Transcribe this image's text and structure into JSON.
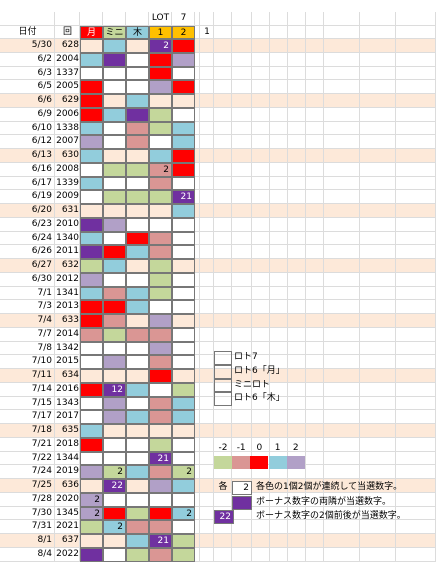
{
  "header": {
    "date": "日付",
    "round": "回",
    "top": [
      "LOT",
      "7"
    ],
    "columns": [
      {
        "label": "月",
        "color": "#ff0000"
      },
      {
        "label": "ミニ",
        "color": "#c4d79b"
      },
      {
        "label": "木",
        "color": "#92cddc"
      },
      {
        "label": 1,
        "color": "#ffc000"
      },
      {
        "label": 2,
        "color": "#ffc000"
      },
      {
        "label": 1,
        "color": null
      }
    ]
  },
  "palette": {
    "r": "#ff0000",
    "g": "#c4d79b",
    "p": "#da9694",
    "b": "#92cddc",
    "v": "#b1a0c7",
    "P": "#7030a0",
    "shade": "#fde9d9"
  },
  "rows": [
    {
      "date": "5/30",
      "round": 628,
      "shaded": true,
      "cells": [
        null,
        "b",
        null,
        "P",
        "r"
      ],
      "nums": [
        null,
        null,
        null,
        2,
        null
      ]
    },
    {
      "date": "6/2",
      "round": 2004,
      "cells": [
        "b",
        "P",
        null,
        "r",
        "v"
      ]
    },
    {
      "date": "6/3",
      "round": 1337,
      "cells": [
        null,
        null,
        null,
        "r",
        null
      ]
    },
    {
      "date": "6/5",
      "round": 2005,
      "cells": [
        "r",
        null,
        null,
        "v",
        "r"
      ]
    },
    {
      "date": "6/6",
      "round": 629,
      "shaded": true,
      "cells": [
        "r",
        null,
        "b",
        null,
        null
      ]
    },
    {
      "date": "6/9",
      "round": 2006,
      "cells": [
        "r",
        "b",
        "P",
        "g",
        null
      ]
    },
    {
      "date": "6/10",
      "round": 1338,
      "cells": [
        "b",
        null,
        "p",
        "g",
        "b"
      ]
    },
    {
      "date": "6/12",
      "round": 2007,
      "cells": [
        "v",
        null,
        "p",
        null,
        "b"
      ]
    },
    {
      "date": "6/13",
      "round": 630,
      "shaded": true,
      "cells": [
        "b",
        null,
        null,
        "b",
        "r"
      ]
    },
    {
      "date": "6/16",
      "round": 2008,
      "cells": [
        null,
        "g",
        "g",
        "p",
        "r"
      ],
      "nums": [
        null,
        null,
        null,
        2,
        null
      ]
    },
    {
      "date": "6/17",
      "round": 1339,
      "cells": [
        "b",
        null,
        null,
        "p",
        null
      ]
    },
    {
      "date": "6/19",
      "round": 2009,
      "cells": [
        null,
        "g",
        "g",
        "g",
        "P"
      ],
      "nums": [
        null,
        null,
        null,
        null,
        21
      ]
    },
    {
      "date": "6/20",
      "round": 631,
      "shaded": true,
      "cells": [
        null,
        null,
        null,
        null,
        "b"
      ]
    },
    {
      "date": "6/23",
      "round": 2010,
      "cells": [
        "P",
        "v",
        null,
        null,
        null
      ]
    },
    {
      "date": "6/24",
      "round": 1340,
      "cells": [
        "b",
        null,
        "r",
        "p",
        null
      ]
    },
    {
      "date": "6/26",
      "round": 2011,
      "cells": [
        "P",
        "r",
        "b",
        "p",
        null
      ]
    },
    {
      "date": "6/27",
      "round": 632,
      "shaded": true,
      "cells": [
        "g",
        "b",
        null,
        "g",
        null
      ]
    },
    {
      "date": "6/30",
      "round": 2012,
      "cells": [
        "v",
        null,
        null,
        "g",
        null
      ]
    },
    {
      "date": "7/1",
      "round": 1341,
      "cells": [
        "b",
        "p",
        "b",
        "g",
        null
      ]
    },
    {
      "date": "7/3",
      "round": 2013,
      "cells": [
        "r",
        "r",
        "b",
        null,
        null
      ]
    },
    {
      "date": "7/4",
      "round": 633,
      "shaded": true,
      "cells": [
        "r",
        "p",
        null,
        "v",
        null
      ]
    },
    {
      "date": "7/7",
      "round": 2014,
      "cells": [
        "p",
        "g",
        "p",
        "p",
        null
      ]
    },
    {
      "date": "7/8",
      "round": 1342,
      "cells": [
        null,
        null,
        null,
        "v",
        null
      ]
    },
    {
      "date": "7/10",
      "round": 2015,
      "cells": [
        null,
        "v",
        null,
        "p",
        null
      ]
    },
    {
      "date": "7/11",
      "round": 634,
      "shaded": true,
      "cells": [
        null,
        null,
        null,
        "r",
        null
      ]
    },
    {
      "date": "7/14",
      "round": 2016,
      "cells": [
        "r",
        "P",
        "b",
        null,
        "g"
      ],
      "nums": [
        null,
        12,
        null,
        null,
        null
      ]
    },
    {
      "date": "7/15",
      "round": 1343,
      "cells": [
        null,
        "v",
        null,
        "p",
        "b"
      ]
    },
    {
      "date": "7/17",
      "round": 2017,
      "cells": [
        null,
        "v",
        "b",
        "p",
        "b"
      ]
    },
    {
      "date": "7/18",
      "round": 635,
      "shaded": true,
      "cells": [
        "b",
        null,
        null,
        null,
        null
      ]
    },
    {
      "date": "7/21",
      "round": 2018,
      "cells": [
        "r",
        null,
        null,
        "g",
        null
      ]
    },
    {
      "date": "7/22",
      "round": 1344,
      "cells": [
        null,
        null,
        null,
        "P",
        null
      ],
      "nums": [
        null,
        null,
        null,
        21,
        null
      ]
    },
    {
      "date": "7/24",
      "round": 2019,
      "cells": [
        "v",
        "g",
        "b",
        "p",
        "g"
      ],
      "nums": [
        null,
        2,
        null,
        null,
        2
      ]
    },
    {
      "date": "7/25",
      "round": 636,
      "shaded": true,
      "cells": [
        null,
        "P",
        null,
        "v",
        "b"
      ],
      "nums": [
        null,
        22,
        null,
        null,
        null
      ]
    },
    {
      "date": "7/28",
      "round": 2020,
      "cells": [
        "v",
        null,
        null,
        null,
        null
      ],
      "nums": [
        2,
        null,
        null,
        null,
        null
      ]
    },
    {
      "date": "7/30",
      "round": 1345,
      "cells": [
        "v",
        "r",
        "g",
        "r",
        "b"
      ],
      "nums": [
        2,
        null,
        null,
        null,
        2
      ]
    },
    {
      "date": "7/31",
      "round": 2021,
      "cells": [
        "g",
        "b",
        "p",
        "p",
        null
      ],
      "nums": [
        null,
        2,
        null,
        null,
        null
      ]
    },
    {
      "date": "8/1",
      "round": 637,
      "shaded": true,
      "cells": [
        null,
        null,
        "b",
        "P",
        "g"
      ],
      "nums": [
        null,
        null,
        null,
        21,
        null
      ]
    },
    {
      "date": "8/4",
      "round": 2022,
      "cells": [
        "P",
        null,
        "g",
        "p",
        "g"
      ]
    }
  ],
  "legend": [
    "ロト7",
    "ロト6「月」",
    "ミニロト",
    "ロト6「木」"
  ],
  "scale": [
    {
      "label": -2,
      "color": "g"
    },
    {
      "label": -1,
      "color": "p"
    },
    {
      "label": 0,
      "color": "r"
    },
    {
      "label": 1,
      "color": "b"
    },
    {
      "label": 2,
      "color": "v"
    }
  ],
  "notes": [
    {
      "prefix": "各",
      "box": 2,
      "box_color": null,
      "text": "各色の1個2個が連続して当選数字。"
    },
    {
      "box_color": "P",
      "text": "ボーナス数字の両隣が当選数字。"
    },
    {
      "box": 22,
      "box_color": "P",
      "text": "ボーナス数字の2個前後が当選数字。"
    }
  ]
}
